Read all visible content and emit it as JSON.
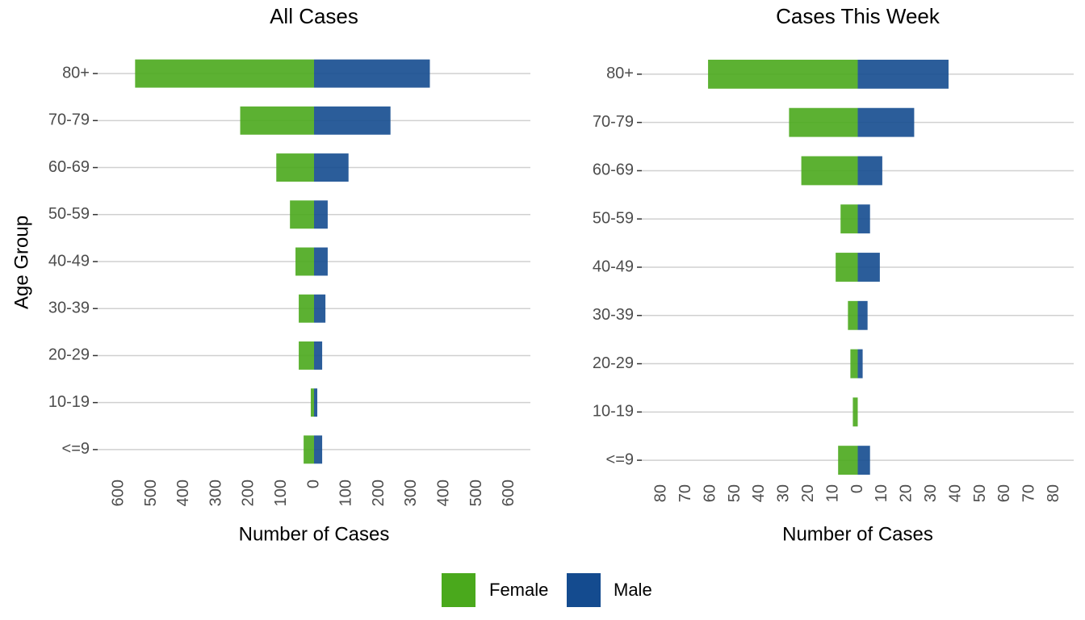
{
  "chart_data": [
    {
      "type": "bar",
      "orientation": "horizontal",
      "title": "All Cases",
      "xlabel": "Number of Cases",
      "ylabel": "Age Group",
      "categories": [
        "80+",
        "70-79",
        "60-69",
        "50-59",
        "40-49",
        "30-39",
        "20-29",
        "10-19",
        "<=9"
      ],
      "series": [
        {
          "name": "Female",
          "color": "#4aa91c",
          "values": [
            -550,
            -227,
            -116,
            -74,
            -57,
            -47,
            -47,
            -10,
            -32
          ]
        },
        {
          "name": "Male",
          "color": "#144b8f",
          "values": [
            356,
            235,
            106,
            42,
            42,
            35,
            25,
            10,
            25
          ]
        }
      ],
      "xlim": [
        -665,
        665
      ],
      "xticks": [
        {
          "value": -600,
          "label": "600"
        },
        {
          "value": -500,
          "label": "500"
        },
        {
          "value": -400,
          "label": "400"
        },
        {
          "value": -300,
          "label": "300"
        },
        {
          "value": -200,
          "label": "200"
        },
        {
          "value": -100,
          "label": "100"
        },
        0,
        100,
        200,
        300,
        400,
        500,
        600
      ],
      "grid": true
    },
    {
      "type": "bar",
      "orientation": "horizontal",
      "title": "Cases This Week",
      "xlabel": "Number of Cases",
      "categories": [
        "80+",
        "70-79",
        "60-69",
        "50-59",
        "40-49",
        "30-39",
        "20-29",
        "10-19",
        "<=9"
      ],
      "series": [
        {
          "color": "#4aa91c",
          "values": [
            -61,
            -28,
            -23,
            -7,
            -9,
            -4,
            -3,
            -2,
            -8
          ]
        },
        {
          "color": "#144b8f",
          "values": [
            37,
            23,
            10,
            5,
            9,
            4,
            2,
            0,
            5
          ]
        }
      ],
      "xlim": [
        -88,
        88
      ],
      "xticks": [
        {
          "value": -80,
          "label": "80"
        },
        {
          "value": -70,
          "label": "70"
        },
        {
          "value": -60,
          "label": "60"
        },
        {
          "value": -50,
          "label": "50"
        },
        {
          "value": -40,
          "label": "40"
        },
        {
          "value": -30,
          "label": "30"
        },
        {
          "value": -20,
          "label": "20"
        },
        {
          "value": -10,
          "label": "10"
        },
        0,
        10,
        20,
        30,
        40,
        50,
        60,
        70,
        80
      ],
      "grid": true
    }
  ]
}
